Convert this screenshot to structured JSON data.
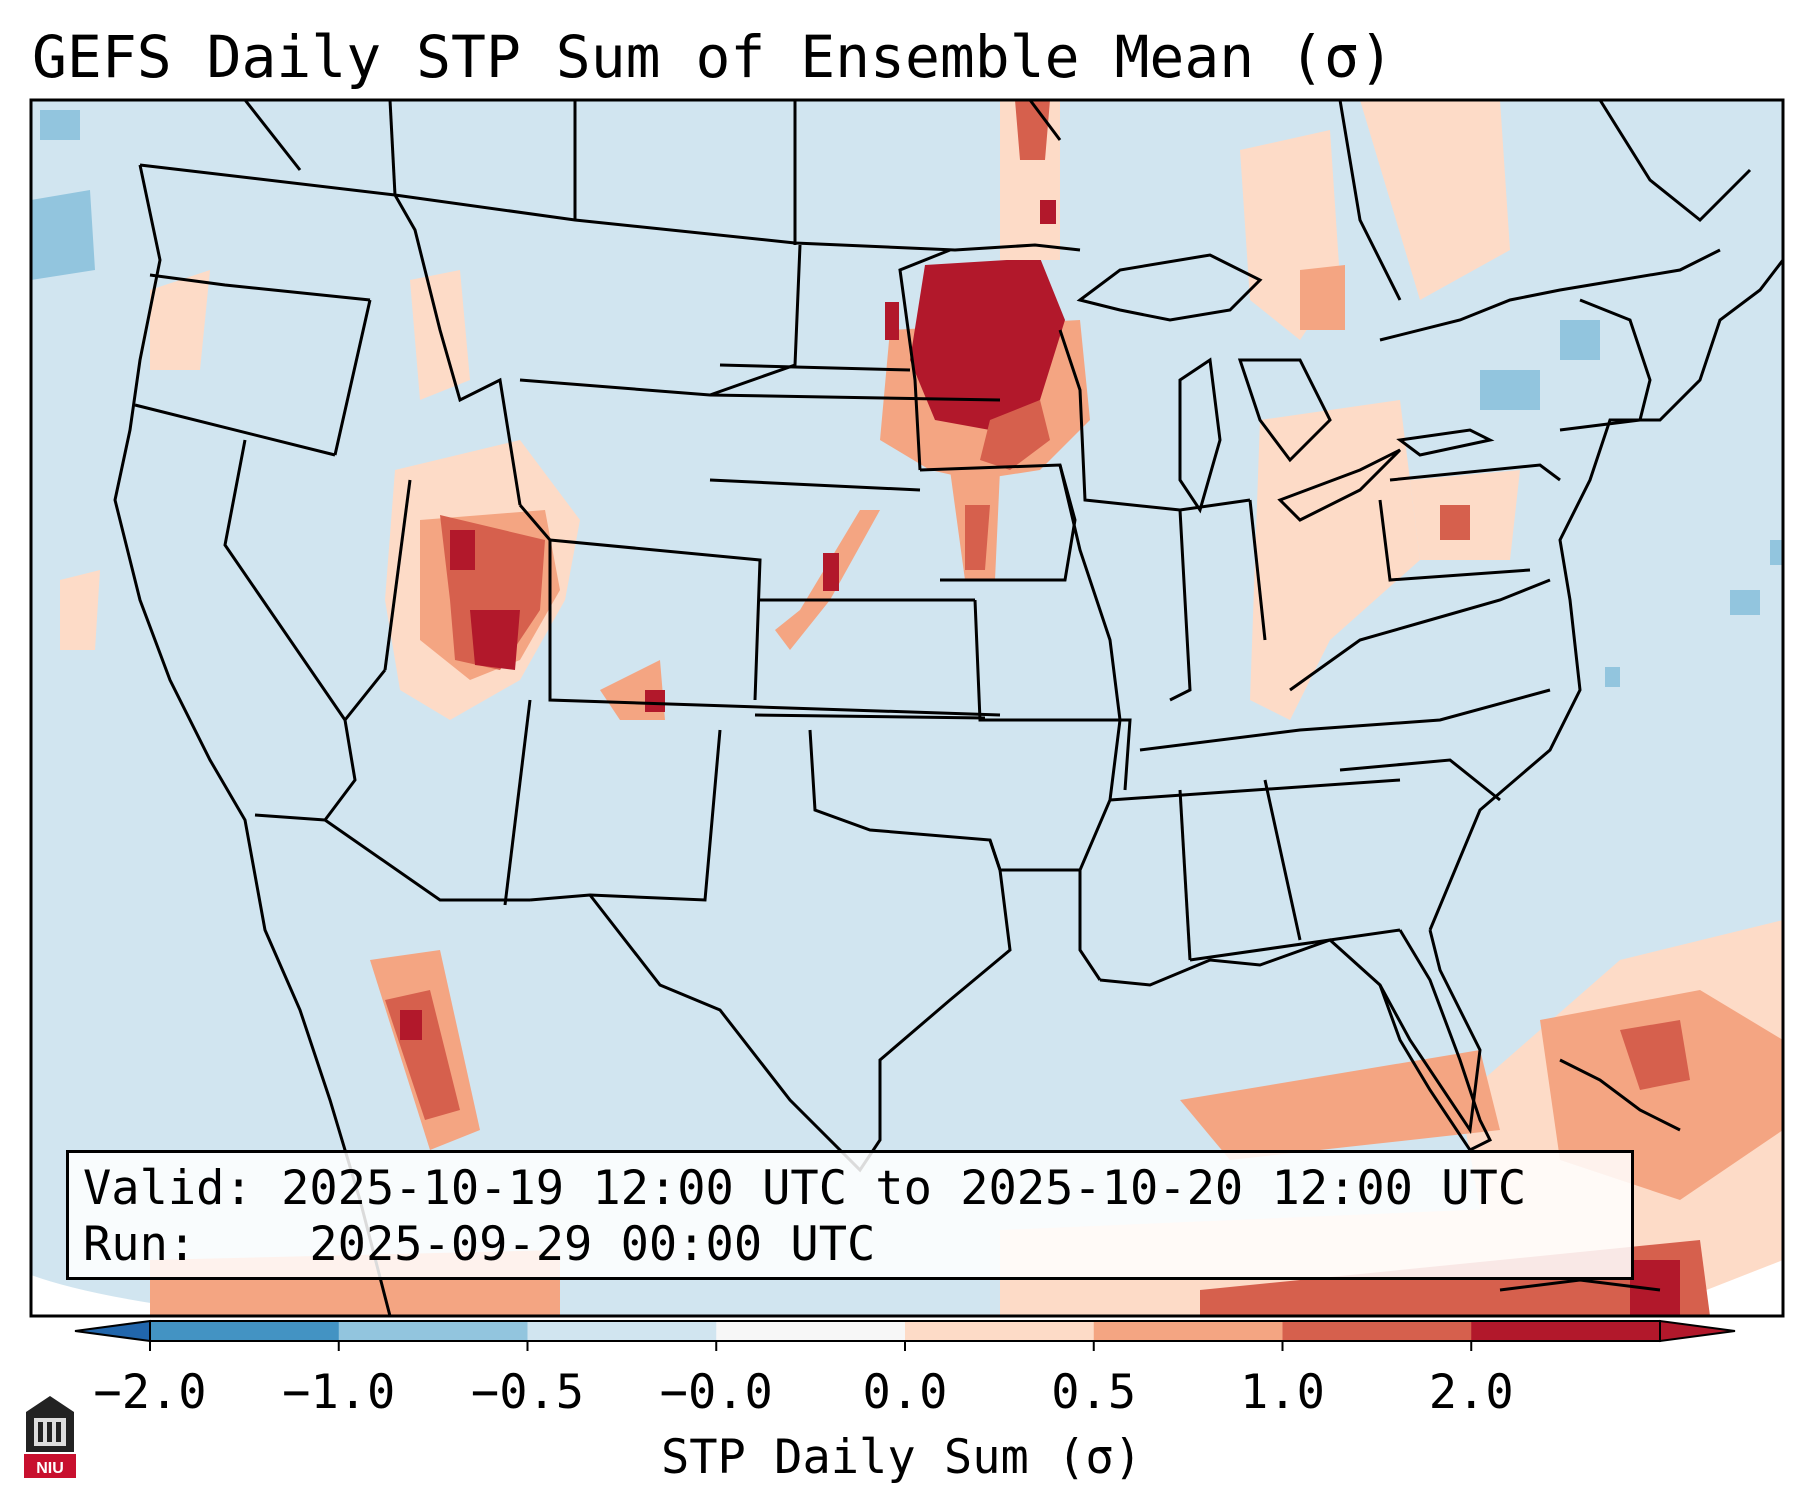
{
  "title": "GEFS Daily STP Sum of Ensemble Mean (σ)",
  "info": {
    "valid_label": "Valid:",
    "valid_range": "2025-10-19 12:00 UTC to 2025-10-20 12:00 UTC",
    "run_label": "Run:",
    "run_time": "2025-09-29 00:00 UTC"
  },
  "colorbar": {
    "label": "STP Daily Sum (σ)",
    "ticks": [
      "−2.0",
      "−1.0",
      "−0.5",
      "−0.0",
      "0.0",
      "0.5",
      "1.0",
      "2.0"
    ],
    "colors": [
      "#4393c3",
      "#92c5de",
      "#d1e5f0",
      "#f7f7f7",
      "#fddbc7",
      "#f4a582",
      "#d6604d",
      "#b2182b"
    ],
    "extend_low_color": "#2166ac",
    "extend_high_color": "#b2182b"
  },
  "logo": {
    "text": "NIU",
    "color": "#c8102e"
  }
}
